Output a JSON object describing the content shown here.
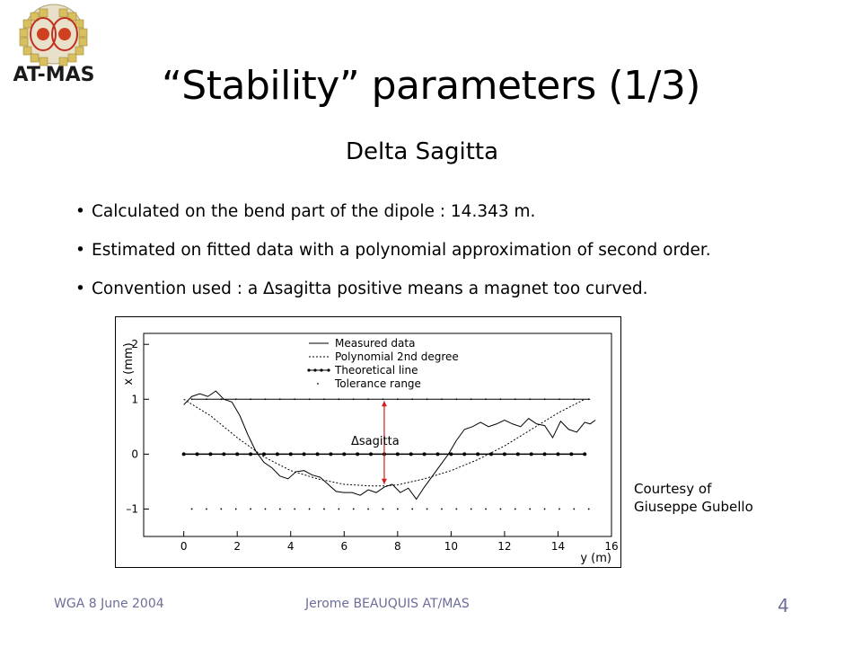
{
  "logo": {
    "text": "AT-MAS"
  },
  "slide": {
    "title": "“Stability” parameters (1/3)",
    "subtitle": "Delta Sagitta",
    "bullets": [
      "Calculated on the bend part of the dipole : 14.343 m.",
      "Estimated on fitted data with a polynomial approximation of second order.",
      "Convention used : a Δsagitta positive means a magnet too curved."
    ],
    "courtesy_line1": "Courtesy of",
    "courtesy_line2": "Giuseppe Gubello"
  },
  "footer": {
    "left": "WGA  8 June 2004",
    "center": "Jerome BEAUQUIS AT/MAS",
    "page": "4"
  },
  "colors": {
    "arrow": "#d22020",
    "footer": "#6d6d9a"
  },
  "chart_data": {
    "type": "line",
    "xlabel": "y (m)",
    "ylabel": "x (mm)",
    "xlim": [
      -1.5,
      16
    ],
    "ylim": [
      -1.5,
      2.2
    ],
    "x_ticks": [
      "0",
      "2",
      "4",
      "6",
      "8",
      "10",
      "12",
      "14",
      "16"
    ],
    "y_ticks": [
      "2",
      "1",
      "0",
      "–1"
    ],
    "legend": [
      "Measured data",
      "Polynomial 2nd degree",
      "Theoretical line",
      "Tolerance range"
    ],
    "annotation": "Δsagitta",
    "series": [
      {
        "name": "Measured data",
        "x": [
          0,
          0.3,
          0.6,
          0.9,
          1.2,
          1.5,
          1.8,
          2.1,
          2.4,
          2.7,
          3.0,
          3.3,
          3.6,
          3.9,
          4.2,
          4.5,
          4.8,
          5.1,
          5.4,
          5.7,
          6.0,
          6.3,
          6.6,
          6.9,
          7.2,
          7.5,
          7.8,
          8.1,
          8.4,
          8.7,
          9.0,
          9.3,
          9.6,
          9.9,
          10.2,
          10.5,
          10.8,
          11.1,
          11.4,
          11.7,
          12.0,
          12.3,
          12.6,
          12.9,
          13.2,
          13.5,
          13.8,
          14.1,
          14.4,
          14.7,
          15.0,
          15.2,
          15.4
        ],
        "values": [
          0.9,
          1.05,
          1.1,
          1.05,
          1.15,
          1.0,
          0.95,
          0.7,
          0.35,
          0.05,
          -0.15,
          -0.25,
          -0.4,
          -0.45,
          -0.32,
          -0.3,
          -0.38,
          -0.42,
          -0.55,
          -0.68,
          -0.7,
          -0.7,
          -0.75,
          -0.65,
          -0.7,
          -0.6,
          -0.55,
          -0.7,
          -0.62,
          -0.82,
          -0.6,
          -0.4,
          -0.2,
          0.0,
          0.25,
          0.45,
          0.5,
          0.58,
          0.5,
          0.55,
          0.62,
          0.55,
          0.5,
          0.65,
          0.55,
          0.52,
          0.3,
          0.6,
          0.45,
          0.4,
          0.58,
          0.55,
          0.62
        ]
      },
      {
        "name": "Polynomial 2nd degree",
        "x": [
          0,
          1,
          2,
          3,
          4,
          5,
          6,
          7,
          7.5,
          8,
          9,
          10,
          11,
          12,
          13,
          14,
          15
        ],
        "values": [
          1.0,
          0.7,
          0.3,
          -0.05,
          -0.3,
          -0.45,
          -0.55,
          -0.58,
          -0.58,
          -0.56,
          -0.45,
          -0.3,
          -0.1,
          0.15,
          0.45,
          0.75,
          1.0
        ]
      },
      {
        "name": "Theoretical line",
        "x": [
          0,
          0.5,
          1,
          1.5,
          2,
          2.5,
          3,
          3.5,
          4,
          4.5,
          5,
          5.5,
          6,
          6.5,
          7,
          7.5,
          8,
          8.5,
          9,
          9.5,
          10,
          10.5,
          11,
          11.5,
          12,
          12.5,
          13,
          13.5,
          14,
          14.5,
          15
        ],
        "values": [
          0,
          0,
          0,
          0,
          0,
          0,
          0,
          0,
          0,
          0,
          0,
          0,
          0,
          0,
          0,
          0,
          0,
          0,
          0,
          0,
          0,
          0,
          0,
          0,
          0,
          0,
          0,
          0,
          0,
          0,
          0
        ]
      },
      {
        "name": "Tolerance range",
        "upper": 1.0,
        "lower": -1.0,
        "x_start": 0.3,
        "x_end": 15.2
      }
    ]
  }
}
